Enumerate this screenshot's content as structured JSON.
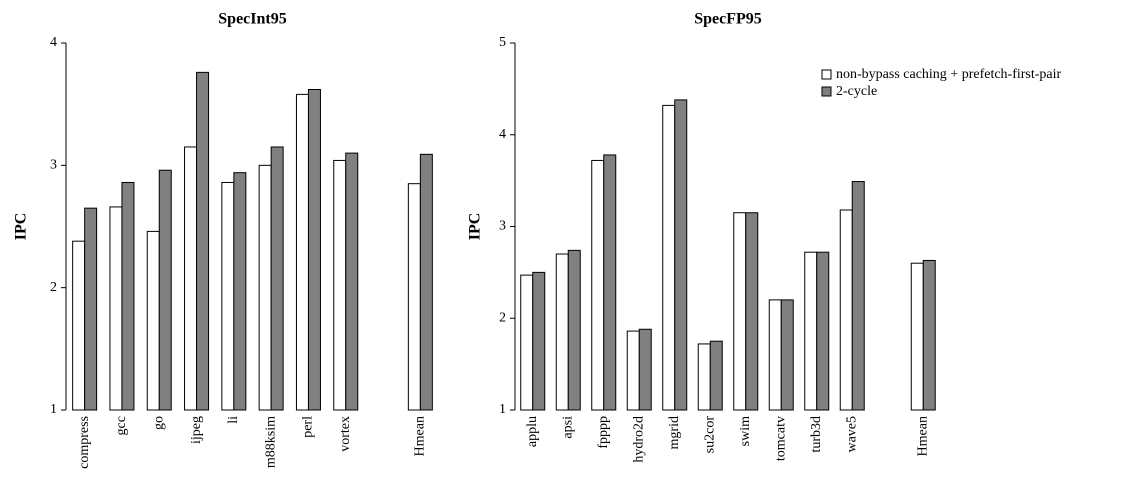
{
  "chart_data": [
    {
      "type": "bar",
      "title": "SpecInt95",
      "y_label": "IPC",
      "categories": [
        "compress",
        "gcc",
        "go",
        "ijpeg",
        "li",
        "m88ksim",
        "perl",
        "vortex",
        null,
        "Hmean"
      ],
      "series": [
        {
          "color": "#ffffff",
          "values": [
            2.38,
            2.66,
            2.46,
            3.15,
            2.86,
            3.0,
            3.58,
            3.04,
            null,
            2.85
          ]
        },
        {
          "color": "#808080",
          "values": [
            2.65,
            2.86,
            2.96,
            3.76,
            2.94,
            3.15,
            3.62,
            3.1,
            null,
            3.09
          ]
        }
      ],
      "ylim": [
        1,
        4
      ],
      "yticks": [
        1,
        2,
        3,
        4
      ]
    },
    {
      "type": "bar",
      "title": "SpecFP95",
      "y_label": "IPC",
      "categories": [
        "applu",
        "apsi",
        "fpppp",
        "hydro2d",
        "mgrid",
        "su2cor",
        "swim",
        "tomcatv",
        "turb3d",
        "wave5",
        null,
        "Hmean"
      ],
      "series": [
        {
          "name": "non-bypass caching + prefetch-first-pair",
          "color": "#ffffff",
          "values": [
            2.47,
            2.7,
            3.72,
            1.86,
            4.32,
            1.72,
            3.15,
            2.2,
            2.72,
            3.18,
            null,
            2.6
          ]
        },
        {
          "name": "2-cycle",
          "color": "#808080",
          "values": [
            2.5,
            2.74,
            3.78,
            1.88,
            4.38,
            1.75,
            3.15,
            2.2,
            2.72,
            3.49,
            null,
            2.63
          ]
        }
      ],
      "ylim": [
        1,
        5
      ],
      "yticks": [
        1,
        2,
        3,
        4,
        5
      ],
      "legend": "upper right"
    }
  ]
}
